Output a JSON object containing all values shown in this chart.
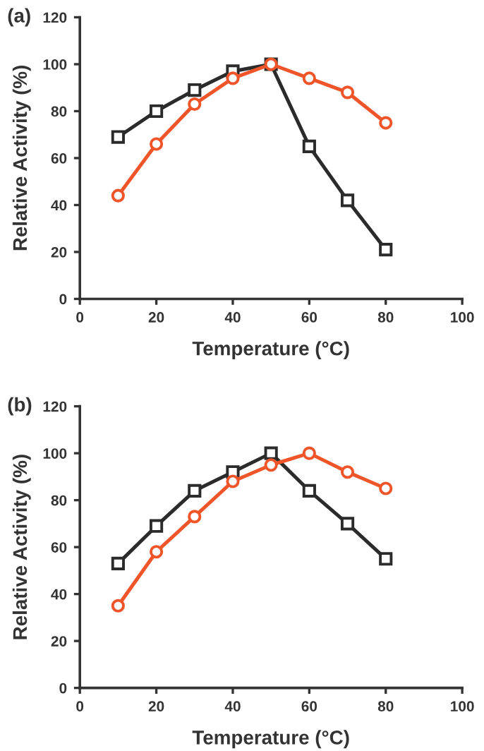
{
  "chart_data": [
    {
      "type": "line",
      "title": "(a)",
      "xlabel": "Temperature (°C)",
      "ylabel": "Relative Activity (%)",
      "x": [
        10,
        20,
        30,
        40,
        50,
        60,
        70,
        80
      ],
      "series": [
        {
          "color": "#2b2b2b",
          "marker": "square",
          "values": [
            69,
            80,
            89,
            97,
            100,
            65,
            42,
            21
          ]
        },
        {
          "color": "#f0552a",
          "marker": "circle",
          "values": [
            44,
            66,
            83,
            94,
            100,
            94,
            88,
            75
          ]
        }
      ],
      "xlim": [
        0,
        100
      ],
      "xticks": [
        0,
        20,
        40,
        60,
        80,
        100
      ],
      "ylim": [
        0,
        120
      ],
      "yticks": [
        0,
        20,
        40,
        60,
        80,
        100,
        120
      ],
      "grid": false,
      "legend": false,
      "line_style": "solid"
    },
    {
      "type": "line",
      "title": "(b)",
      "xlabel": "Temperature (°C)",
      "ylabel": "Relative Activity (%)",
      "x": [
        10,
        20,
        30,
        40,
        50,
        60,
        70,
        80
      ],
      "series": [
        {
          "color": "#2b2b2b",
          "marker": "square",
          "values": [
            53,
            69,
            84,
            92,
            100,
            84,
            70,
            55
          ]
        },
        {
          "color": "#f0552a",
          "marker": "circle",
          "values": [
            35,
            58,
            73,
            88,
            95,
            100,
            92,
            85
          ]
        }
      ],
      "xlim": [
        0,
        100
      ],
      "xticks": [
        0,
        20,
        40,
        60,
        80,
        100
      ],
      "ylim": [
        0,
        120
      ],
      "yticks": [
        0,
        20,
        40,
        60,
        80,
        100,
        120
      ],
      "grid": false,
      "legend": false,
      "line_style": "solid"
    }
  ]
}
